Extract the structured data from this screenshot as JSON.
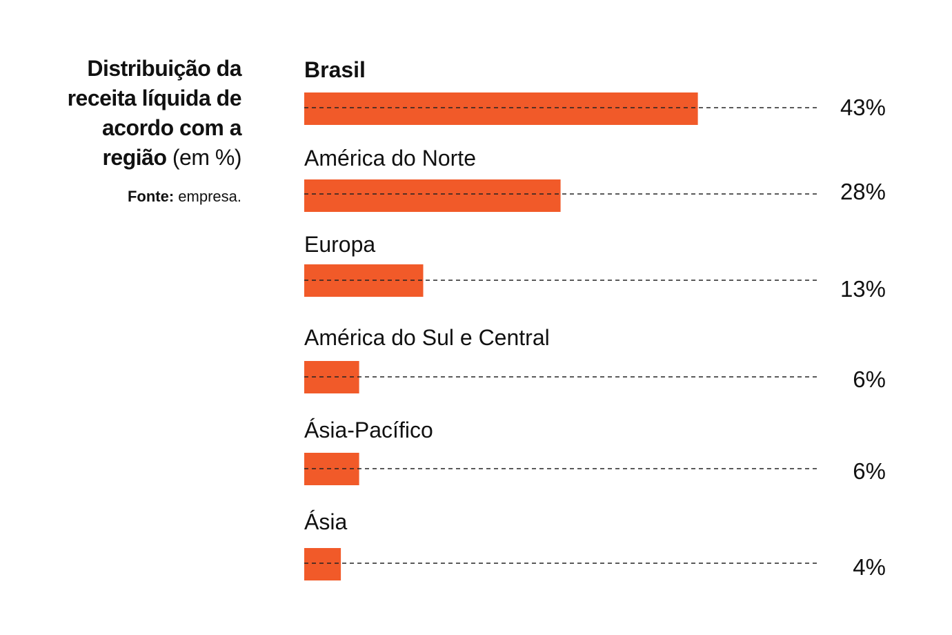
{
  "header": {
    "title_bold": "Distribuição da receita líquida de acordo com a região",
    "title_unit": "(em %)",
    "source_label": "Fonte:",
    "source_text": "empresa."
  },
  "colors": {
    "bar": "#f15a29",
    "text": "#111111",
    "leader": "#222222"
  },
  "chart_data": {
    "type": "bar",
    "orientation": "horizontal",
    "title": "Distribuição da receita líquida de acordo com a região (em %)",
    "categories": [
      "Brasil",
      "América do Norte",
      "Europa",
      "América do Sul e Central",
      "Ásia-Pacífico",
      "Ásia"
    ],
    "values": [
      43,
      28,
      13,
      6,
      6,
      4
    ],
    "value_labels": [
      "43%",
      "28%",
      "13%",
      "6%",
      "6%",
      "4%"
    ],
    "highlight_category": "Brasil",
    "unit": "%",
    "grid": false,
    "legend": "none"
  }
}
